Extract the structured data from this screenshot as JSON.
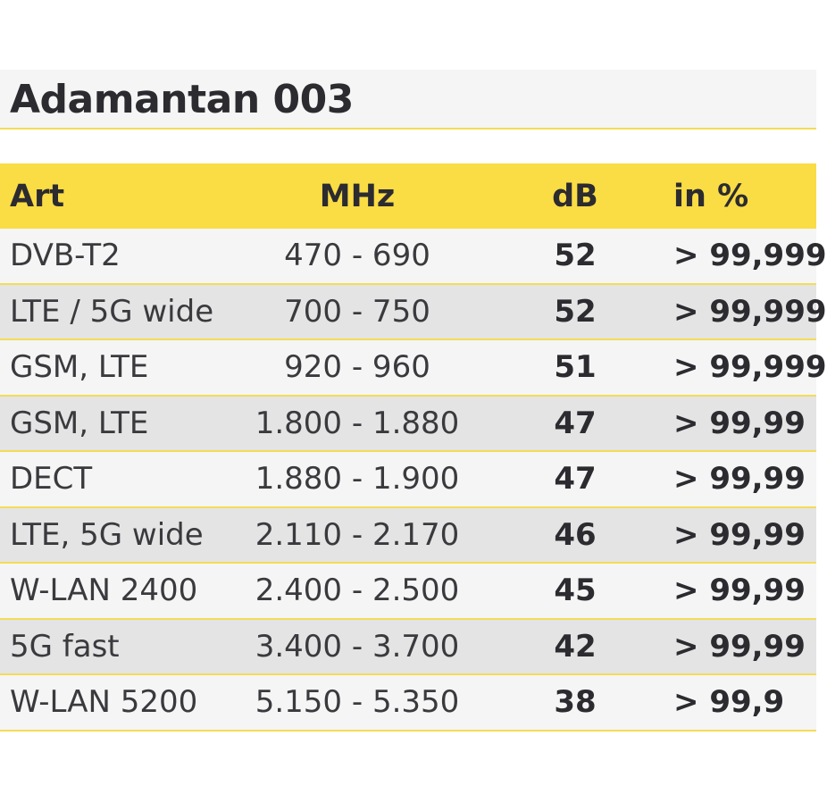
{
  "title": "Adamantan 003",
  "colors": {
    "accent_yellow": "#fadc45",
    "divider_yellow": "#f4dc57",
    "row_light": "#f5f5f5",
    "row_dark": "#e4e4e4",
    "text": "#2b2b30"
  },
  "table": {
    "headers": [
      "Art",
      "MHz",
      "dB",
      "in %"
    ],
    "rows": [
      [
        "DVB-T2",
        "470 - 690",
        "52",
        "> 99,999"
      ],
      [
        "LTE / 5G wide",
        "700 - 750",
        "52",
        "> 99,999"
      ],
      [
        "GSM, LTE",
        "920 - 960",
        "51",
        "> 99,999"
      ],
      [
        "GSM, LTE",
        "1.800 - 1.880",
        "47",
        "> 99,99"
      ],
      [
        "DECT",
        "1.880 - 1.900",
        "47",
        "> 99,99"
      ],
      [
        "LTE, 5G wide",
        "2.110 - 2.170",
        "46",
        "> 99,99"
      ],
      [
        "W-LAN 2400",
        "2.400 - 2.500",
        "45",
        "> 99,99"
      ],
      [
        "5G fast",
        "3.400 - 3.700",
        "42",
        "> 99,99"
      ],
      [
        "W-LAN 5200",
        "5.150 - 5.350",
        "38",
        "> 99,9"
      ]
    ]
  }
}
